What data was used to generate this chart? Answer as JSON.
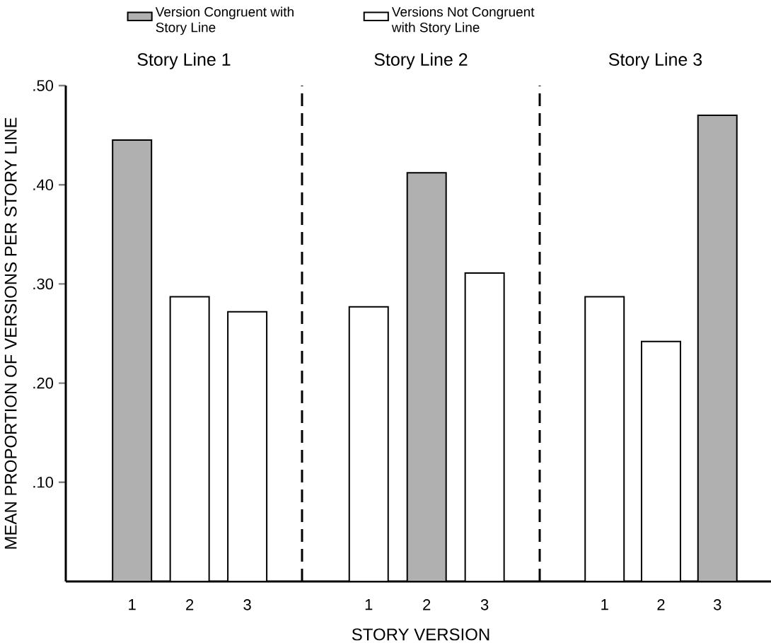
{
  "chart_data": [
    {
      "type": "bar",
      "title": "Story Line 1",
      "ylabel": "MEAN PROPORTION OF VERSIONS PER STORY LINE",
      "categories": [
        "1",
        "2",
        "3"
      ],
      "series": [
        {
          "name": "Version Congruent with Story Line",
          "color": "#b0b0b0",
          "values": [
            0.445,
            null,
            null
          ]
        },
        {
          "name": "Versions Not Congruent with Story Line",
          "color": "#ffffff",
          "values": [
            null,
            0.287,
            0.272
          ]
        }
      ],
      "ylim": [
        0,
        0.5
      ],
      "yticks": [
        {
          "value": 0.1,
          "label": ".10"
        },
        {
          "value": 0.2,
          "label": ".20"
        },
        {
          "value": 0.3,
          "label": ".30"
        },
        {
          "value": 0.4,
          "label": ".40"
        },
        {
          "value": 0.5,
          "label": ".50"
        }
      ],
      "legend": "top"
    },
    {
      "type": "bar",
      "title": "Story Line 2",
      "xlabel": "STORY VERSION",
      "categories": [
        "1",
        "2",
        "3"
      ],
      "series": [
        {
          "color": "#b0b0b0",
          "values": [
            null,
            0.412,
            null
          ]
        },
        {
          "color": "#ffffff",
          "values": [
            0.277,
            null,
            0.311
          ]
        }
      ],
      "ylim": [
        0,
        0.5
      ],
      "tick_labels": "x"
    },
    {
      "type": "bar",
      "title": "Story Line 3",
      "categories": [
        "1",
        "2",
        "3"
      ],
      "series": [
        {
          "color": "#b0b0b0",
          "values": [
            null,
            null,
            0.47
          ]
        },
        {
          "color": "#ffffff",
          "values": [
            0.287,
            0.242,
            null
          ]
        }
      ],
      "ylim": [
        0,
        0.5
      ],
      "tick_labels": "x"
    }
  ]
}
